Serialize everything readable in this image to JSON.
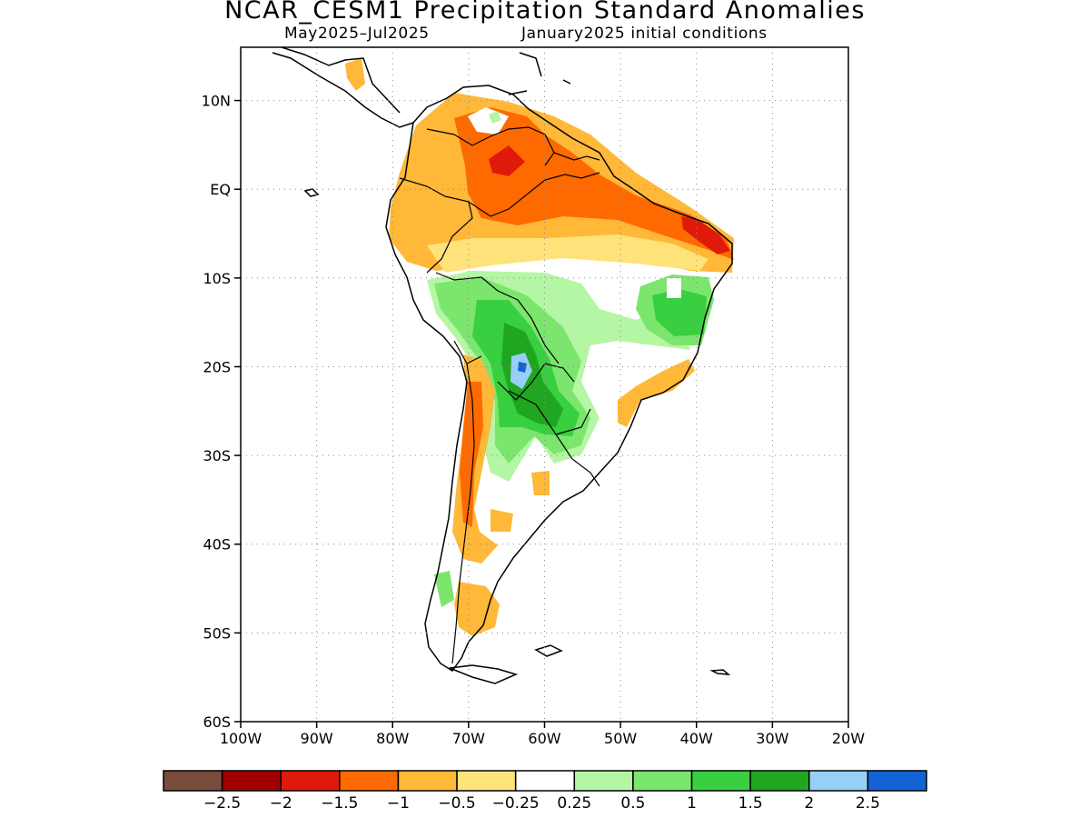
{
  "title": "NCAR_CESM1 Precipitation Standard Anomalies",
  "subtitle_left": "May2025–Jul2025",
  "subtitle_right": "January2025 initial conditions",
  "map": {
    "lon_range": [
      -100,
      -20
    ],
    "lat_range": [
      -60,
      16
    ],
    "lat_ticks": [
      {
        "value": 10,
        "label": "10N"
      },
      {
        "value": 0,
        "label": "EQ"
      },
      {
        "value": -10,
        "label": "10S"
      },
      {
        "value": -20,
        "label": "20S"
      },
      {
        "value": -30,
        "label": "30S"
      },
      {
        "value": -40,
        "label": "40S"
      },
      {
        "value": -50,
        "label": "50S"
      },
      {
        "value": -60,
        "label": "60S"
      }
    ],
    "lon_ticks": [
      {
        "value": -100,
        "label": "100W"
      },
      {
        "value": -90,
        "label": "90W"
      },
      {
        "value": -80,
        "label": "80W"
      },
      {
        "value": -70,
        "label": "70W"
      },
      {
        "value": -60,
        "label": "60W"
      },
      {
        "value": -50,
        "label": "50W"
      },
      {
        "value": -40,
        "label": "40W"
      },
      {
        "value": -30,
        "label": "30W"
      },
      {
        "value": -20,
        "label": "20W"
      }
    ],
    "grid": "dotted"
  },
  "colorbar": {
    "colors": [
      "#7a4a3c",
      "#a10000",
      "#e01a0a",
      "#ff6a00",
      "#ffb838",
      "#ffe27a",
      "#ffffff",
      "#b4f6a4",
      "#7ce56e",
      "#38cf40",
      "#20a620",
      "#96d0f6",
      "#1463d6"
    ],
    "labels": [
      "−2.5",
      "−2",
      "−1.5",
      "−1",
      "−0.5",
      "−0.25",
      "0.25",
      "0.5",
      "1",
      "1.5",
      "2",
      "2.5"
    ]
  }
}
